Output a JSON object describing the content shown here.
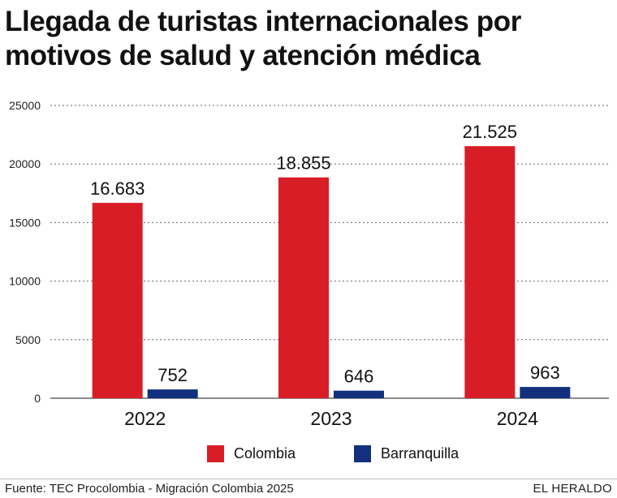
{
  "chart_data": {
    "type": "bar",
    "title": "Llegada de turistas internacionales por motivos de salud y atención médica",
    "title_lines": [
      "Llegada de turistas internacionales por",
      "motivos de salud y atención médica"
    ],
    "categories": [
      "2022",
      "2023",
      "2024"
    ],
    "series": [
      {
        "name": "Colombia",
        "color": "#d91d26",
        "values": [
          16683,
          18855,
          21525
        ],
        "labels": [
          "16.683",
          "18.855",
          "21.525"
        ]
      },
      {
        "name": "Barranquilla",
        "color": "#13307f",
        "values": [
          752,
          646,
          963
        ],
        "labels": [
          "752",
          "646",
          "963"
        ]
      }
    ],
    "ylim": [
      0,
      25000
    ],
    "yticks": [
      "0",
      "5000",
      "10000",
      "15000",
      "20000",
      "25000"
    ],
    "ytick_values": [
      0,
      5000,
      10000,
      15000,
      20000,
      25000
    ],
    "grid": true,
    "legend_position": "bottom"
  },
  "footer": {
    "source": "Fuente: TEC Procolombia - Migración Colombia 2025",
    "brand": "EL HERALDO"
  }
}
